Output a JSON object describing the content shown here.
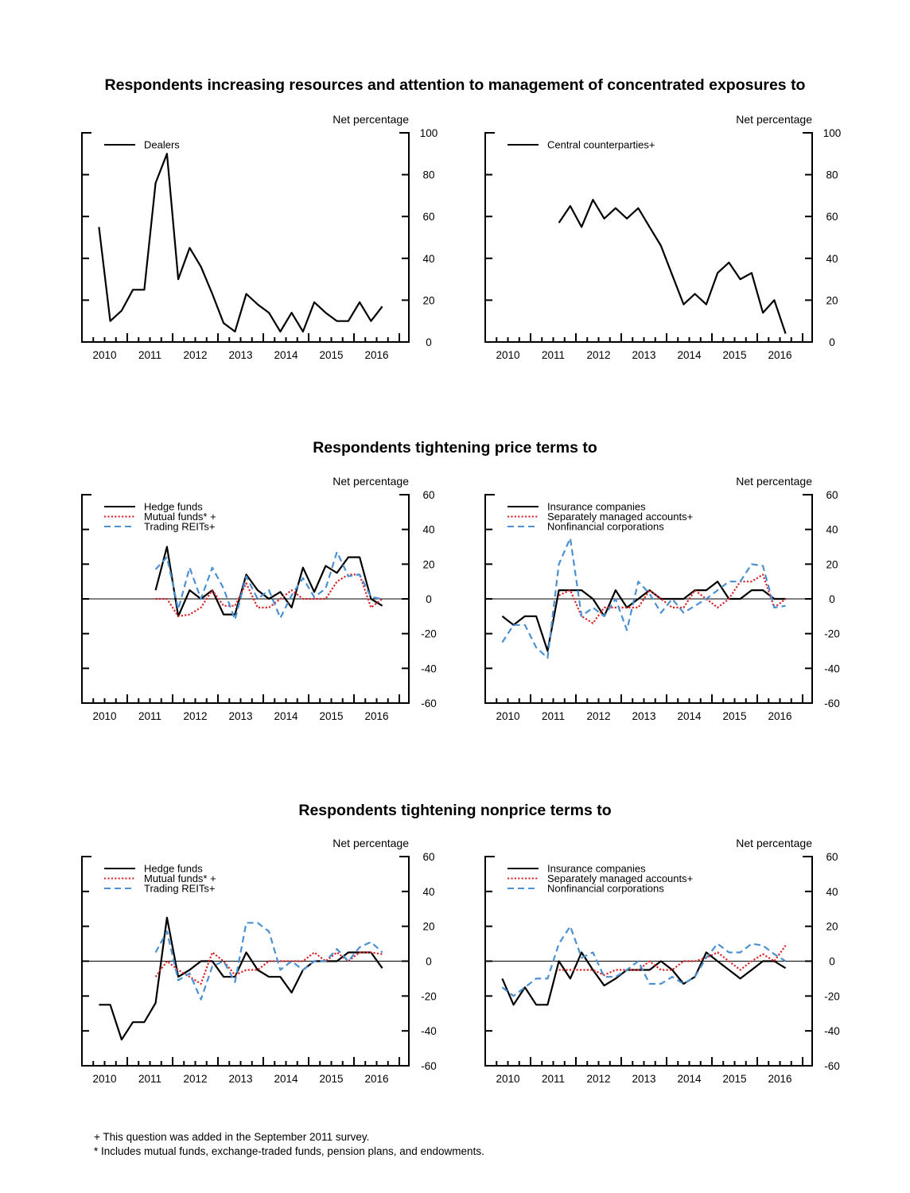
{
  "titles": {
    "row1": "Respondents increasing resources and attention to management of concentrated exposures to",
    "row2": "Respondents tightening price terms to",
    "row3": "Respondents tightening nonprice terms to"
  },
  "footnotes": [
    "+ This question was added in the September 2011 survey.",
    "* Includes mutual funds, exchange-traded funds, pension plans, and endowments."
  ],
  "colors": {
    "black": "#000000",
    "red": "#d9262b",
    "blue": "#4a90d2"
  },
  "quarters": [
    "2010Q2",
    "2010Q3",
    "2010Q4",
    "2011Q1",
    "2011Q2",
    "2011Q3",
    "2011Q4",
    "2012Q1",
    "2012Q2",
    "2012Q3",
    "2012Q4",
    "2013Q1",
    "2013Q2",
    "2013Q3",
    "2013Q4",
    "2014Q1",
    "2014Q2",
    "2014Q3",
    "2014Q4",
    "2015Q1",
    "2015Q2",
    "2015Q3",
    "2015Q4",
    "2016Q1",
    "2016Q2",
    "2016Q3"
  ],
  "chart_data": [
    {
      "type": "line",
      "ylabel": "Net percentage",
      "ylim": [
        0,
        100
      ],
      "yticks": [
        0,
        20,
        40,
        60,
        80,
        100
      ],
      "xticks": [
        "2010",
        "2011",
        "2012",
        "2013",
        "2014",
        "2015",
        "2016"
      ],
      "legend": "top-left",
      "zero_line": false,
      "series": [
        {
          "name": "Dealers",
          "style": "solid",
          "color": "#000000",
          "values": [
            55,
            10,
            15,
            25,
            25,
            76,
            90,
            30,
            45,
            36,
            23,
            9,
            5,
            23,
            18,
            14,
            5,
            14,
            5,
            19,
            14,
            10,
            10,
            19,
            10,
            17
          ]
        }
      ]
    },
    {
      "type": "line",
      "ylabel": "Net percentage",
      "ylim": [
        0,
        100
      ],
      "yticks": [
        0,
        20,
        40,
        60,
        80,
        100
      ],
      "xticks": [
        "2010",
        "2011",
        "2012",
        "2013",
        "2014",
        "2015",
        "2016"
      ],
      "legend": "top-left",
      "zero_line": false,
      "series": [
        {
          "name": "Central counterparties+",
          "style": "solid",
          "color": "#000000",
          "values": [
            null,
            null,
            null,
            null,
            null,
            57,
            65,
            55,
            68,
            59,
            64,
            59,
            64,
            55,
            46,
            32,
            18,
            23,
            18,
            33,
            38,
            30,
            33,
            14,
            20,
            4
          ]
        }
      ]
    },
    {
      "type": "line",
      "ylabel": "Net percentage",
      "ylim": [
        -60,
        60
      ],
      "yticks": [
        -60,
        -40,
        -20,
        0,
        20,
        40,
        60
      ],
      "xticks": [
        "2010",
        "2011",
        "2012",
        "2013",
        "2014",
        "2015",
        "2016"
      ],
      "legend": "top-left",
      "zero_line": true,
      "series": [
        {
          "name": "Hedge funds",
          "style": "solid",
          "color": "#000000",
          "values": [
            null,
            null,
            null,
            null,
            null,
            5,
            30,
            -10,
            5,
            0,
            5,
            -9,
            -9,
            14,
            5,
            0,
            4,
            -5,
            18,
            4,
            19,
            15,
            24,
            24,
            0,
            -4
          ]
        },
        {
          "name": "Mutual funds* +",
          "style": "dotted",
          "color": "#d9262b",
          "values": [
            null,
            null,
            null,
            null,
            null,
            0,
            0,
            -10,
            -9,
            -5,
            5,
            -4,
            -4,
            9,
            -5,
            -5,
            0,
            5,
            0,
            0,
            0,
            10,
            14,
            14,
            -5,
            0
          ]
        },
        {
          "name": "Trading REITs+",
          "style": "dashed",
          "color": "#4a90d2",
          "values": [
            null,
            null,
            null,
            null,
            null,
            17,
            24,
            -6,
            18,
            0,
            18,
            6,
            -12,
            13,
            0,
            5,
            -11,
            2,
            12,
            1,
            6,
            27,
            13,
            14,
            1,
            0
          ]
        }
      ]
    },
    {
      "type": "line",
      "ylabel": "Net percentage",
      "ylim": [
        -60,
        60
      ],
      "yticks": [
        -60,
        -40,
        -20,
        0,
        20,
        40,
        60
      ],
      "xticks": [
        "2010",
        "2011",
        "2012",
        "2013",
        "2014",
        "2015",
        "2016"
      ],
      "legend": "top-left",
      "zero_line": true,
      "series": [
        {
          "name": "Insurance companies",
          "style": "solid",
          "color": "#000000",
          "values": [
            -10,
            -15,
            -10,
            -10,
            -30,
            5,
            5,
            5,
            0,
            -10,
            5,
            -5,
            0,
            5,
            0,
            0,
            0,
            5,
            5,
            10,
            0,
            0,
            5,
            5,
            0,
            0
          ]
        },
        {
          "name": "Separately managed accounts+",
          "style": "dotted",
          "color": "#d9262b",
          "values": [
            null,
            null,
            null,
            null,
            null,
            2,
            5,
            -10,
            -14,
            -5,
            -5,
            -5,
            -5,
            5,
            0,
            -5,
            -5,
            5,
            0,
            -5,
            0,
            10,
            10,
            14,
            -5,
            0
          ]
        },
        {
          "name": "Nonfinancial corporations",
          "style": "dashed",
          "color": "#4a90d2",
          "values": [
            -25,
            -15,
            -15,
            -28,
            -34,
            20,
            35,
            -10,
            -5,
            -10,
            0,
            -18,
            10,
            3,
            -8,
            0,
            -8,
            -4,
            0,
            5,
            10,
            10,
            20,
            19,
            -5,
            -4
          ]
        }
      ]
    },
    {
      "type": "line",
      "ylabel": "Net percentage",
      "ylim": [
        -60,
        60
      ],
      "yticks": [
        -60,
        -40,
        -20,
        0,
        20,
        40,
        60
      ],
      "xticks": [
        "2010",
        "2011",
        "2012",
        "2013",
        "2014",
        "2015",
        "2016"
      ],
      "legend": "top-left",
      "zero_line": true,
      "series": [
        {
          "name": "Hedge funds",
          "style": "solid",
          "color": "#000000",
          "values": [
            -25,
            -25,
            -45,
            -35,
            -35,
            -24,
            25,
            -9,
            -5,
            0,
            0,
            -9,
            -9,
            5,
            -5,
            -9,
            -9,
            -18,
            -5,
            0,
            0,
            0,
            5,
            5,
            5,
            -4
          ]
        },
        {
          "name": "Mutual funds* +",
          "style": "dotted",
          "color": "#d9262b",
          "values": [
            null,
            null,
            null,
            null,
            null,
            -9,
            0,
            -5,
            -9,
            -13,
            5,
            0,
            -8,
            -5,
            -5,
            0,
            0,
            0,
            0,
            5,
            0,
            5,
            0,
            5,
            5,
            4
          ]
        },
        {
          "name": "Trading REITs+",
          "style": "dashed",
          "color": "#4a90d2",
          "values": [
            null,
            null,
            null,
            null,
            null,
            5,
            17,
            -11,
            -7,
            -22,
            -3,
            0,
            -12,
            22,
            22,
            17,
            -5,
            0,
            -5,
            0,
            0,
            7,
            0,
            8,
            11,
            5
          ]
        }
      ]
    },
    {
      "type": "line",
      "ylabel": "Net percentage",
      "ylim": [
        -60,
        60
      ],
      "yticks": [
        -60,
        -40,
        -20,
        0,
        20,
        40,
        60
      ],
      "xticks": [
        "2010",
        "2011",
        "2012",
        "2013",
        "2014",
        "2015",
        "2016"
      ],
      "legend": "top-left",
      "zero_line": true,
      "series": [
        {
          "name": "Insurance companies",
          "style": "solid",
          "color": "#000000",
          "values": [
            -10,
            -25,
            -15,
            -25,
            -25,
            0,
            -10,
            5,
            -5,
            -14,
            -10,
            -5,
            -5,
            -5,
            0,
            -5,
            -13,
            -9,
            5,
            0,
            -5,
            -10,
            -5,
            0,
            0,
            -4
          ]
        },
        {
          "name": "Separately managed accounts+",
          "style": "dotted",
          "color": "#d9262b",
          "values": [
            null,
            null,
            null,
            null,
            null,
            -5,
            -5,
            -5,
            -5,
            -8,
            -5,
            -5,
            -5,
            0,
            -5,
            -5,
            0,
            0,
            2,
            5,
            0,
            -5,
            0,
            4,
            0,
            9
          ]
        },
        {
          "name": "Nonfinancial corporations",
          "style": "dashed",
          "color": "#4a90d2",
          "values": [
            -15,
            -20,
            -15,
            -10,
            -10,
            10,
            20,
            2,
            5,
            -9,
            -9,
            -5,
            0,
            -13,
            -13,
            -9,
            -13,
            -9,
            2,
            10,
            5,
            5,
            10,
            9,
            4,
            0
          ]
        }
      ]
    }
  ]
}
